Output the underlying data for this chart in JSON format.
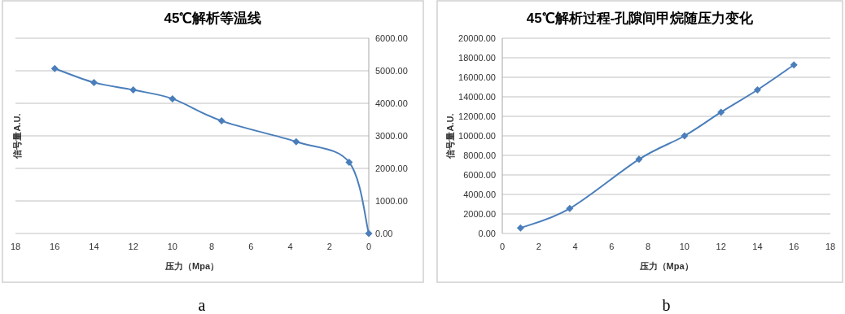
{
  "chart_data": [
    {
      "type": "line",
      "title": "45℃解析等温线",
      "xlabel": "压力（Mpa）",
      "ylabel": "信号量A.U.",
      "annotations": [
        "a"
      ],
      "x": [
        16,
        14,
        12,
        10,
        7.5,
        3.7,
        1,
        0
      ],
      "series": [
        {
          "color": "#4a7ebb",
          "axis": "y2",
          "values": [
            5070,
            4640,
            4410,
            4140,
            3460,
            2820,
            2190,
            0
          ]
        }
      ],
      "xlim": [
        18,
        0
      ],
      "xticks": [
        18,
        16,
        14,
        12,
        10,
        8,
        6,
        4,
        2,
        0
      ],
      "y2lim": [
        0,
        6000
      ],
      "y2ticks": [
        {
          "value": 0,
          "label": "0.00"
        },
        {
          "value": 1000,
          "label": "1000.00"
        },
        {
          "value": 2000,
          "label": "2000.00"
        },
        {
          "value": 3000,
          "label": "3000.00"
        },
        {
          "value": 4000,
          "label": "4000.00"
        },
        {
          "value": 5000,
          "label": "5000.00"
        },
        {
          "value": 6000,
          "label": "6000.00"
        }
      ],
      "grid": "y",
      "marker": "diamond",
      "line_style": "solid"
    },
    {
      "type": "line",
      "title": "45℃解析过程-孔隙间甲烷随压力变化",
      "xlabel": "压力（Mpa）",
      "ylabel": "信号量A.U.",
      "annotations": [
        "b"
      ],
      "x": [
        1,
        3.7,
        7.5,
        10,
        12,
        14,
        16
      ],
      "series": [
        {
          "color": "#4a7ebb",
          "values": [
            560,
            2560,
            7600,
            10000,
            12420,
            14710,
            17270
          ]
        }
      ],
      "xlim": [
        0,
        18
      ],
      "xticks": [
        0,
        2,
        4,
        6,
        8,
        10,
        12,
        14,
        16,
        18
      ],
      "ylim": [
        0,
        20000
      ],
      "yticks": [
        {
          "value": 0,
          "label": "0.00"
        },
        {
          "value": 2000,
          "label": "2000.00"
        },
        {
          "value": 4000,
          "label": "4000.00"
        },
        {
          "value": 6000,
          "label": "6000.00"
        },
        {
          "value": 8000,
          "label": "8000.00"
        },
        {
          "value": 10000,
          "label": "10000.00"
        },
        {
          "value": 12000,
          "label": "12000.00"
        },
        {
          "value": 14000,
          "label": "14000.00"
        },
        {
          "value": 16000,
          "label": "16000.00"
        },
        {
          "value": 18000,
          "label": "18000.00"
        },
        {
          "value": 20000,
          "label": "20000.00"
        }
      ],
      "grid": "y",
      "marker": "diamond",
      "line_style": "solid"
    }
  ]
}
